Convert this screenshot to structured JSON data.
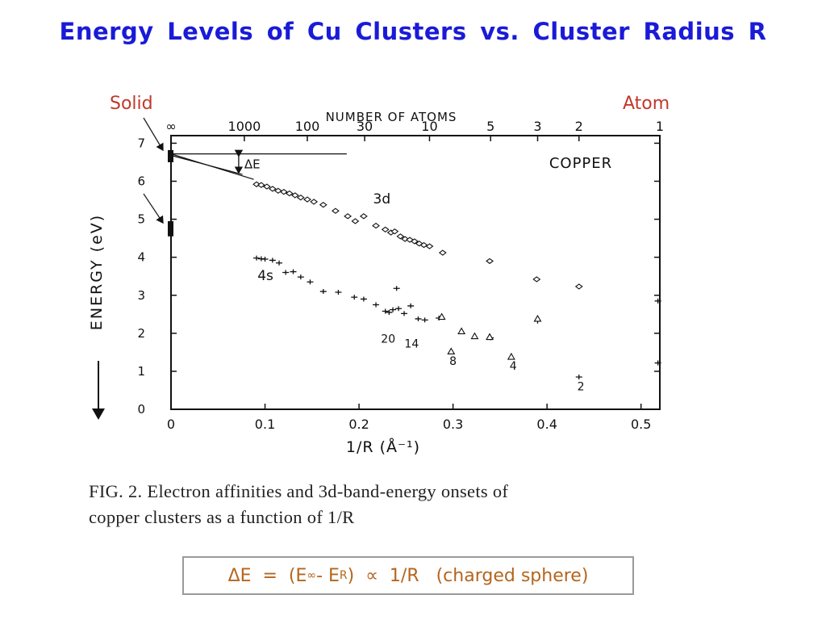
{
  "slide": {
    "title": "Energy  Levels  of  Cu Clusters  vs.  Cluster Radius R",
    "solid_label": "Solid",
    "atom_label": "Atom"
  },
  "caption": {
    "line1": "FIG. 2.  Electron affinities and 3d-band-energy onsets of",
    "line2": "copper clusters as a function of 1/R"
  },
  "formula": {
    "lead": "ΔE  =  (E",
    "sub_inf": "∞",
    "mid": "- E",
    "sub_r": "R",
    "tail": ")  ∝  1/R   (charged sphere)"
  },
  "chart_data": {
    "type": "scatter",
    "title": "COPPER",
    "xlabel": "1/R  (Å⁻¹)",
    "ylabel": "ENERGY  (eV)",
    "top_axis_label": "NUMBER  OF  ATOMS",
    "xlim": [
      0,
      0.52
    ],
    "ylim": [
      0,
      7.2
    ],
    "x_ticks": [
      0,
      0.1,
      0.2,
      0.3,
      0.4,
      0.5
    ],
    "x_tick_labels": [
      "0",
      "0.1",
      "0.2",
      "0.3",
      "0.4",
      "0.5"
    ],
    "y_ticks": [
      0,
      1,
      2,
      3,
      4,
      5,
      6,
      7
    ],
    "y_tick_labels": [
      "0",
      "1",
      "2",
      "3",
      "4",
      "5",
      "6",
      "7"
    ],
    "top_ticks": [
      {
        "x": 0.0,
        "label": "∞"
      },
      {
        "x": 0.078,
        "label": "1000"
      },
      {
        "x": 0.145,
        "label": "100"
      },
      {
        "x": 0.206,
        "label": "30"
      },
      {
        "x": 0.275,
        "label": "10"
      },
      {
        "x": 0.34,
        "label": "5"
      },
      {
        "x": 0.39,
        "label": "3"
      },
      {
        "x": 0.434,
        "label": "2"
      },
      {
        "x": 0.52,
        "label": "1"
      }
    ],
    "delta_e_label": "ΔE",
    "series": [
      {
        "name": "3d",
        "marker": "diamond",
        "x": [
          0.091,
          0.096,
          0.102,
          0.108,
          0.114,
          0.12,
          0.126,
          0.132,
          0.138,
          0.145,
          0.152,
          0.162,
          0.175,
          0.188,
          0.196,
          0.205,
          0.218,
          0.228,
          0.234,
          0.238,
          0.244,
          0.249,
          0.254,
          0.259,
          0.264,
          0.269,
          0.275,
          0.289,
          0.339,
          0.389,
          0.434
        ],
        "y": [
          5.92,
          5.9,
          5.86,
          5.8,
          5.75,
          5.72,
          5.68,
          5.63,
          5.57,
          5.52,
          5.46,
          5.38,
          5.22,
          5.08,
          4.95,
          5.08,
          4.83,
          4.73,
          4.65,
          4.68,
          4.55,
          4.48,
          4.46,
          4.42,
          4.36,
          4.32,
          4.29,
          4.12,
          3.9,
          3.42,
          3.23
        ]
      },
      {
        "name": "4s",
        "marker": "plus",
        "x": [
          0.091,
          0.096,
          0.1,
          0.108,
          0.115,
          0.122,
          0.13,
          0.138,
          0.148,
          0.162,
          0.178,
          0.195,
          0.205,
          0.218,
          0.228,
          0.232,
          0.236,
          0.24,
          0.242,
          0.248,
          0.255,
          0.263,
          0.27,
          0.285,
          0.34,
          0.39,
          0.434,
          0.518,
          0.518
        ],
        "y": [
          3.98,
          3.96,
          3.95,
          3.92,
          3.85,
          3.6,
          3.62,
          3.48,
          3.35,
          3.1,
          3.08,
          2.95,
          2.9,
          2.75,
          2.58,
          2.55,
          2.62,
          3.18,
          2.65,
          2.52,
          2.72,
          2.38,
          2.35,
          2.4,
          1.88,
          2.32,
          0.85,
          2.85,
          1.22
        ]
      },
      {
        "name": "",
        "marker": "triangle",
        "x": [
          0.288,
          0.298,
          0.309,
          0.323,
          0.339,
          0.362,
          0.39
        ],
        "y": [
          2.43,
          1.52,
          2.05,
          1.92,
          1.9,
          1.38,
          2.38
        ]
      }
    ],
    "annotations": [
      {
        "text": "20",
        "x": 0.231,
        "y": 1.75
      },
      {
        "text": "14",
        "x": 0.256,
        "y": 1.62
      },
      {
        "text": "8",
        "x": 0.3,
        "y": 1.17
      },
      {
        "text": "4",
        "x": 0.364,
        "y": 1.04
      },
      {
        "text": "2",
        "x": 0.436,
        "y": 0.5
      },
      {
        "text": "3d",
        "x": 0.215,
        "y": 5.42
      },
      {
        "text": "4s",
        "x": 0.092,
        "y": 3.4
      }
    ]
  }
}
